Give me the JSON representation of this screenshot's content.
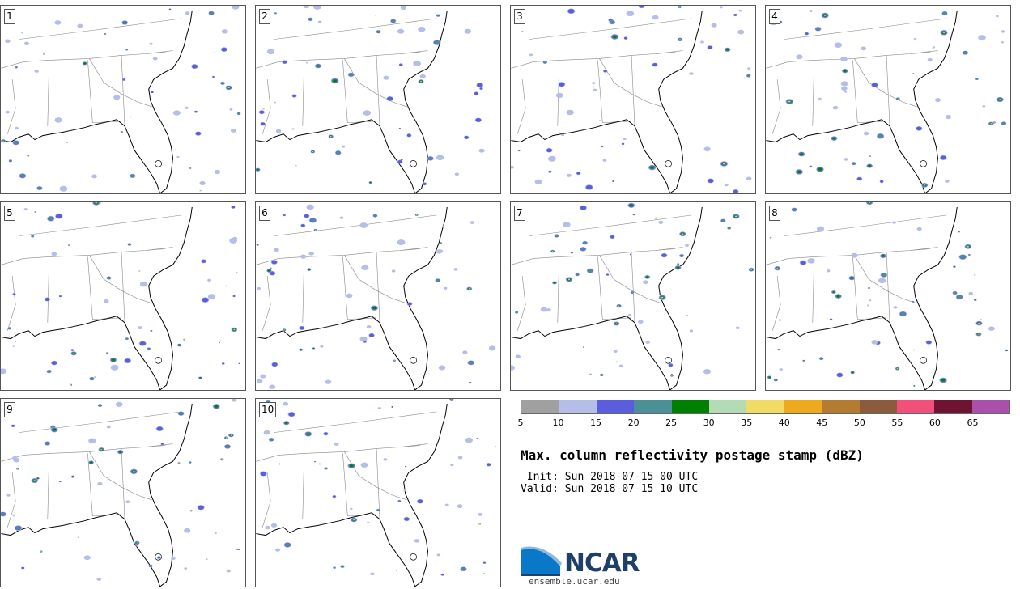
{
  "panels": [
    {
      "label": "1"
    },
    {
      "label": "2"
    },
    {
      "label": "3"
    },
    {
      "label": "4"
    },
    {
      "label": "5"
    },
    {
      "label": "6"
    },
    {
      "label": "7"
    },
    {
      "label": "8"
    },
    {
      "label": "9"
    },
    {
      "label": "10"
    }
  ],
  "colorbar": {
    "colors": [
      "#a0a0a0",
      "#b4bee8",
      "#5a5ede",
      "#4b9096",
      "#008000",
      "#b4dcb4",
      "#f0dc64",
      "#eeaa1e",
      "#b47c32",
      "#8c5a3c",
      "#f0507a",
      "#6e1432",
      "#aa50aa"
    ],
    "ticks": [
      "5",
      "10",
      "15",
      "20",
      "25",
      "30",
      "35",
      "40",
      "45",
      "50",
      "55",
      "60",
      "65"
    ]
  },
  "title": "Max. column reflectivity postage stamp (dBZ)",
  "init": " Init: Sun 2018-07-15 00 UTC",
  "valid": "Valid: Sun 2018-07-15 10 UTC",
  "logo": {
    "text": "NCAR",
    "url": "ensemble.ucar.edu"
  }
}
